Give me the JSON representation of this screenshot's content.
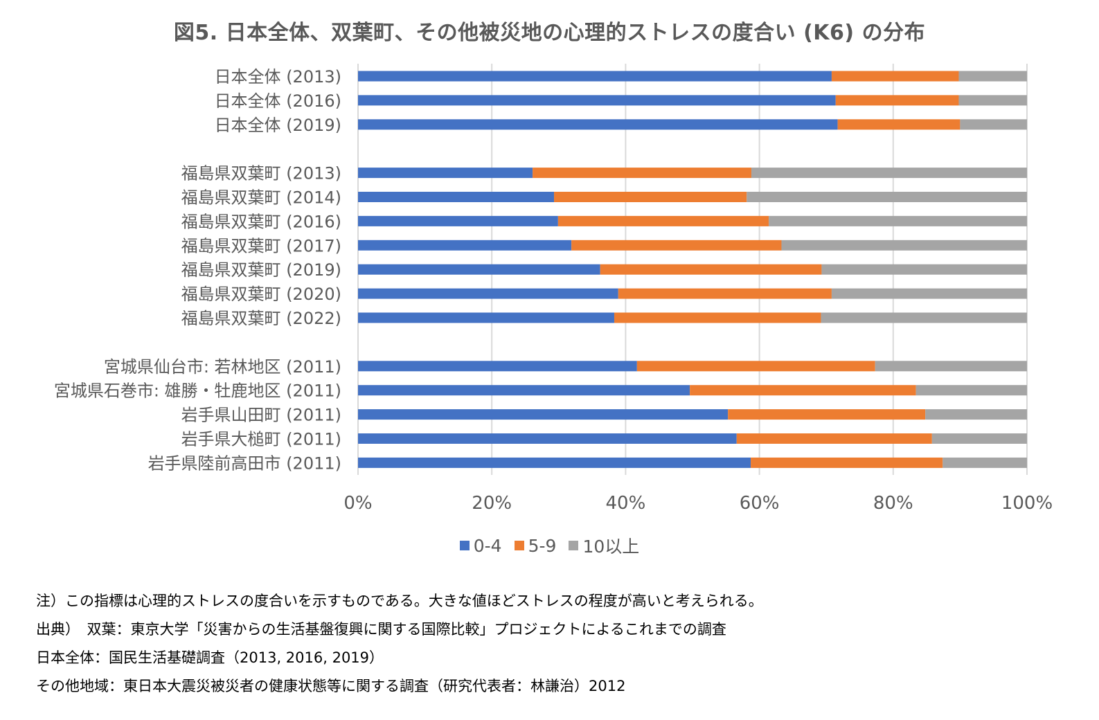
{
  "chart_data": {
    "type": "bar",
    "orientation": "horizontal",
    "stacked": "percent",
    "title": "図5. 日本全体、双葉町、その他被災地の心理的ストレスの度合い (K6) の分布",
    "categories": [
      "日本全体 (2013)",
      "日本全体 (2016)",
      "日本全体 (2019)",
      "福島県双葉町 (2013)",
      "福島県双葉町 (2014)",
      "福島県双葉町 (2016)",
      "福島県双葉町 (2017)",
      "福島県双葉町 (2019)",
      "福島県双葉町 (2020)",
      "福島県双葉町 (2022)",
      "宮城県仙台市: 若林地区 (2011)",
      "宮城県石巻市: 雄勝・牡鹿地区 (2011)",
      "岩手県山田町 (2011)",
      "岩手県大槌町 (2011)",
      "岩手県陸前高田市 (2011)"
    ],
    "groups": [
      [
        0,
        1,
        2
      ],
      [
        3,
        4,
        5,
        6,
        7,
        8,
        9
      ],
      [
        10,
        11,
        12,
        13,
        14
      ]
    ],
    "series": [
      {
        "name": "0-4",
        "color": "#4472C4",
        "values": [
          70.8,
          71.4,
          71.7,
          26.1,
          29.3,
          29.9,
          31.9,
          36.2,
          38.9,
          38.3,
          41.7,
          49.6,
          55.3,
          56.6,
          58.7
        ]
      },
      {
        "name": "5-9",
        "color": "#ED7D31",
        "values": [
          19.0,
          18.4,
          18.3,
          32.7,
          28.8,
          31.5,
          31.4,
          33.1,
          31.9,
          30.9,
          35.6,
          33.8,
          29.5,
          29.2,
          28.7
        ]
      },
      {
        "name": "10以上",
        "color": "#A5A5A5",
        "values": [
          10.2,
          10.2,
          10.0,
          41.2,
          41.9,
          38.6,
          36.7,
          30.7,
          29.2,
          30.8,
          22.7,
          16.6,
          15.2,
          14.2,
          12.6
        ]
      }
    ],
    "xlim": [
      0,
      100
    ],
    "x_ticks": [
      "0%",
      "20%",
      "40%",
      "60%",
      "80%",
      "100%"
    ],
    "grid": true,
    "legend_position": "bottom"
  },
  "notes": [
    "注）この指標は心理的ストレスの度合いを示すものである。大きな値ほどストレスの程度が高いと考えられる。",
    "出典）　双葉：東京大学「災害からの生活基盤復興に関する国際比較」プロジェクトによるこれまでの調査",
    "日本全体：国民生活基礎調査（2013, 2016, 2019）",
    "その他地域：東日本大震災被災者の健康状態等に関する調査（研究代表者：林謙治）2012"
  ],
  "colors": {
    "grid": "#D9D9D9",
    "axis_text": "#595959"
  }
}
